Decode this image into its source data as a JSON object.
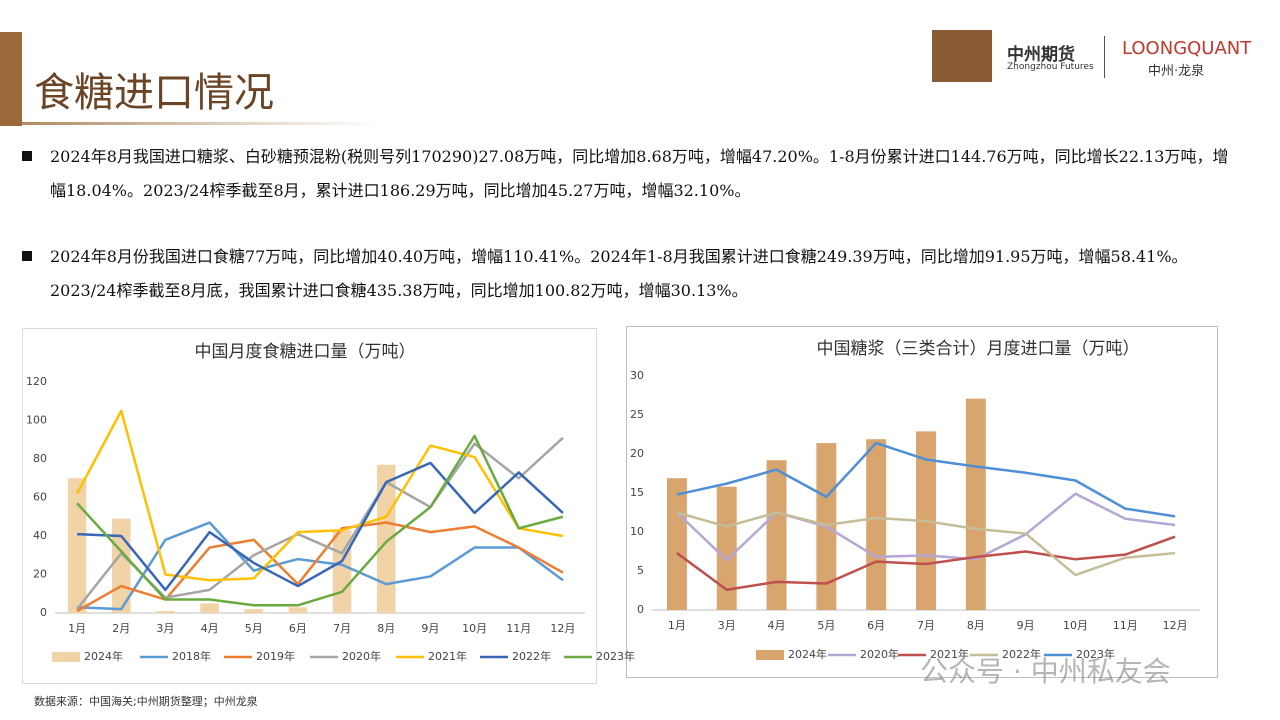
{
  "header": {
    "title": "食糖进口情况",
    "logo_cn": "中州期货",
    "logo_en": "Zhongzhou Futures",
    "brand": "LOONGQUANT",
    "brand_cn": "中州·龙泉"
  },
  "paragraphs": [
    "2024年8月我国进口糖浆、白砂糖预混粉(税则号列170290)27.08万吨，同比增加8.68万吨，增幅47.20%。1-8月份累计进口144.76万吨，同比增长22.13万吨，增幅18.04%。2023/24榨季截至8月，累计进口186.29万吨，同比增加45.27万吨，增幅32.10%。",
    "2024年8月份我国进口食糖77万吨，同比增加40.40万吨，增幅110.41%。2024年1-8月我国累计进口食糖249.39万吨，同比增加91.95万吨，增幅58.41%。2023/24榨季截至8月底，我国累计进口食糖435.38万吨，同比增加100.82万吨，增幅30.13%。"
  ],
  "source": "数据来源：中国海关;中州期货整理；中州龙泉",
  "watermark": "公众号 · 中州私友会",
  "chart_data": [
    {
      "type": "combo",
      "title": "中国月度食糖进口量（万吨）",
      "categories": [
        "1月",
        "2月",
        "3月",
        "4月",
        "5月",
        "6月",
        "7月",
        "8月",
        "9月",
        "10月",
        "11月",
        "12月"
      ],
      "ylim": [
        0,
        120
      ],
      "yticks": [
        0,
        20,
        40,
        60,
        80,
        100,
        120
      ],
      "grid": false,
      "series": [
        {
          "name": "2024年",
          "type": "bar",
          "color": "#f0d3a6",
          "values": [
            70,
            49,
            1,
            5,
            2,
            3,
            43,
            77,
            null,
            null,
            null,
            null
          ]
        },
        {
          "name": "2018年",
          "type": "line",
          "color": "#5b9bd5",
          "values": [
            3,
            2,
            38,
            47,
            22,
            28,
            25,
            15,
            19,
            34,
            34,
            17
          ]
        },
        {
          "name": "2019年",
          "type": "line",
          "color": "#ed7d31",
          "values": [
            1,
            14,
            7,
            34,
            38,
            15,
            44,
            47,
            42,
            45,
            34,
            21
          ]
        },
        {
          "name": "2020年",
          "type": "line",
          "color": "#a5a5a5",
          "values": [
            2,
            31,
            8,
            12,
            30,
            41,
            31,
            68,
            55,
            88,
            70,
            91
          ]
        },
        {
          "name": "2021年",
          "type": "line",
          "color": "#ffc000",
          "values": [
            62,
            105,
            20,
            17,
            18,
            42,
            43,
            50,
            87,
            81,
            44,
            40
          ]
        },
        {
          "name": "2022年",
          "type": "line",
          "color": "#3866b8",
          "values": [
            41,
            40,
            12,
            42,
            26,
            14,
            27,
            68,
            78,
            52,
            73,
            52
          ]
        },
        {
          "name": "2023年",
          "type": "line",
          "color": "#6aaa3f",
          "values": [
            57,
            32,
            7,
            7,
            4,
            4,
            11,
            37,
            55,
            92,
            44,
            50
          ]
        }
      ]
    },
    {
      "type": "combo",
      "title": "中国糖浆（三类合计）月度进口量（万吨）",
      "categories": [
        "1月",
        "3月",
        "4月",
        "5月",
        "6月",
        "7月",
        "8月",
        "9月",
        "10月",
        "11月",
        "12月"
      ],
      "ylim": [
        0,
        30
      ],
      "yticks": [
        0,
        5,
        10,
        15,
        20,
        25,
        30
      ],
      "grid": false,
      "series": [
        {
          "name": "2024年",
          "type": "bar",
          "color": "#d9a56e",
          "values": [
            16.9,
            15.8,
            19.2,
            21.4,
            21.9,
            22.9,
            27.1,
            null,
            null,
            null,
            null
          ]
        },
        {
          "name": "2020年",
          "type": "line",
          "color": "#b4a7d6",
          "values": [
            12.5,
            6.4,
            12.5,
            10.7,
            6.8,
            7.0,
            6.5,
            9.7,
            14.9,
            11.7,
            10.9
          ]
        },
        {
          "name": "2021年",
          "type": "line",
          "color": "#c0504d",
          "values": [
            7.3,
            2.6,
            3.6,
            3.4,
            6.2,
            5.9,
            6.8,
            7.5,
            6.5,
            7.1,
            9.4
          ]
        },
        {
          "name": "2022年",
          "type": "line",
          "color": "#c4bd97",
          "values": [
            12.5,
            10.7,
            12.5,
            10.9,
            11.8,
            11.4,
            10.4,
            9.8,
            4.5,
            6.7,
            7.3
          ]
        },
        {
          "name": "2023年",
          "type": "line",
          "color": "#4f8fd6",
          "values": [
            14.8,
            16.2,
            18.0,
            14.5,
            21.4,
            19.3,
            18.4,
            17.6,
            16.6,
            13.0,
            12.0
          ]
        }
      ]
    }
  ]
}
